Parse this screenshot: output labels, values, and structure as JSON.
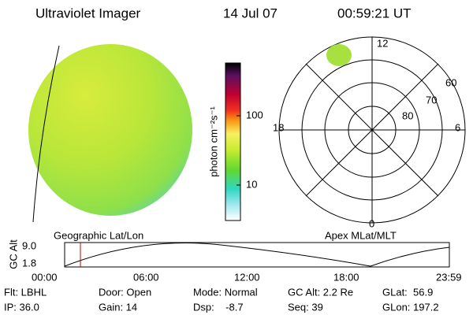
{
  "header": {
    "title": "Ultraviolet Imager",
    "date": "14 Jul 07",
    "time": "00:59:21 UT"
  },
  "colorbar": {
    "label": "photon cm⁻²s⁻¹",
    "ticks": [
      "100",
      "10"
    ]
  },
  "polar": {
    "mlt_labels": [
      "12",
      "18",
      "6",
      "0"
    ],
    "lat_labels": [
      "60",
      "70",
      "80"
    ]
  },
  "altitude_panel": {
    "left_label": "Geographic Lat/Lon",
    "right_label": "Apex MLat/MLT",
    "y_label": "GC Alt",
    "y_ticks": [
      "9.0",
      "1.8"
    ],
    "x_ticks": [
      "00:00",
      "06:00",
      "12:00",
      "18:00",
      "23:59"
    ]
  },
  "footer": {
    "rows": [
      [
        "Flt: LBHL",
        "Door: Open",
        "Mode: Normal",
        "GC Alt: 2.2 Re",
        "GLat:  56.9"
      ],
      [
        "IP: 36.0",
        "Gain: 14",
        "Dsp:    -8.7",
        "Seq: 39",
        "GLon: 197.2"
      ]
    ]
  }
}
